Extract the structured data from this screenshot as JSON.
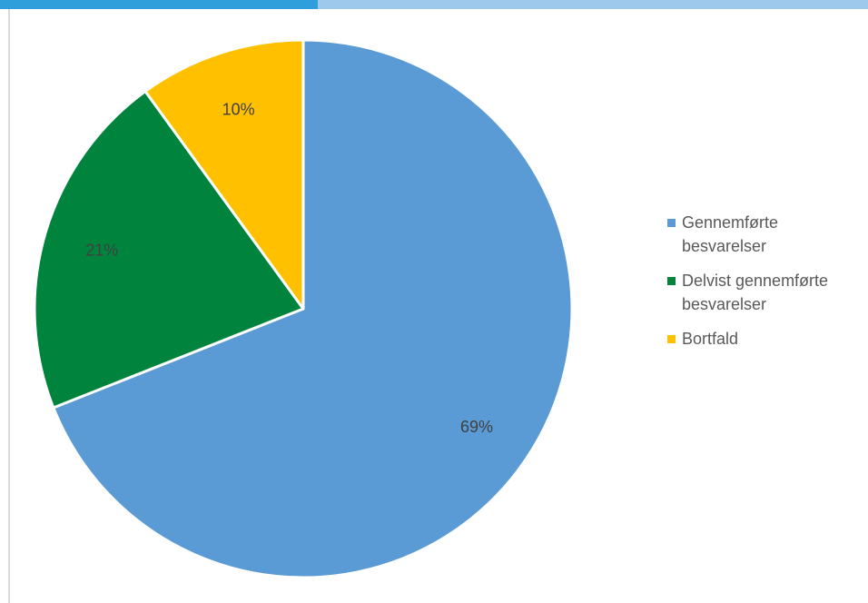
{
  "theme": {
    "top_bar_dark": "#2f9fdc",
    "top_bar_light": "#9ec9ec"
  },
  "chart_data": {
    "type": "pie",
    "categories": [
      "Gennemførte besvarelser",
      "Delvist gennemførte besvarelser",
      "Bortfald"
    ],
    "values": [
      69,
      21,
      10
    ],
    "colors": [
      "#5b9bd5",
      "#00843d",
      "#ffc000"
    ],
    "data_labels": [
      "69%",
      "21%",
      "10%"
    ],
    "legend_placement": "right",
    "start_angle": "top, clockwise"
  },
  "legend": {
    "items": [
      {
        "label": "Gennemførte besvarelser",
        "color": "#5b9bd5"
      },
      {
        "label": "Delvist gennemførte besvarelser",
        "color": "#00843d"
      },
      {
        "label": "Bortfald",
        "color": "#ffc000"
      }
    ]
  }
}
